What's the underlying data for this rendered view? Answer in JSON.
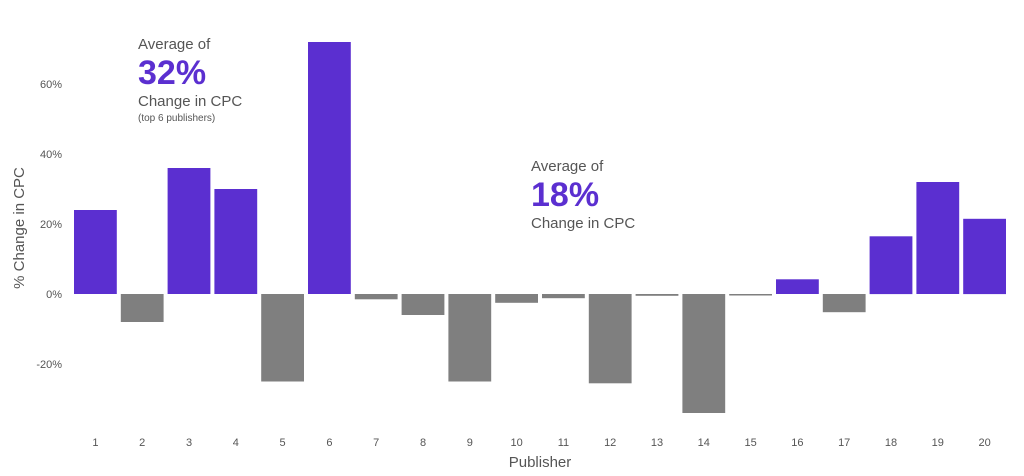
{
  "chart_data": {
    "type": "bar",
    "xlabel": "Publisher",
    "ylabel": "% Change in CPC",
    "ylim": [
      -0.42,
      0.75
    ],
    "yticks": [
      -0.2,
      0,
      0.2,
      0.4,
      0.6
    ],
    "ytick_labels": [
      "-20%",
      "0%",
      "20%",
      "40%",
      "60%"
    ],
    "categories": [
      "1",
      "2",
      "3",
      "4",
      "5",
      "6",
      "7",
      "8",
      "9",
      "10",
      "11",
      "12",
      "13",
      "14",
      "15",
      "16",
      "17",
      "18",
      "19",
      "20"
    ],
    "values": [
      0.24,
      -0.08,
      0.36,
      0.3,
      -0.25,
      0.72,
      -0.015,
      -0.06,
      -0.25,
      -0.025,
      -0.012,
      -0.255,
      -0.005,
      -0.34,
      -0.003,
      0.042,
      -0.052,
      0.165,
      0.32,
      0.215
    ],
    "colors": {
      "positive": "#5b2fd0",
      "negative": "#7f7f7f",
      "text": "#555555"
    },
    "annotations": [
      {
        "lead": "Average of",
        "value": "32%",
        "desc": "Change in CPC",
        "note": "(top 6 publishers)"
      },
      {
        "lead": "Average of",
        "value": "18%",
        "desc": "Change in CPC"
      }
    ]
  }
}
